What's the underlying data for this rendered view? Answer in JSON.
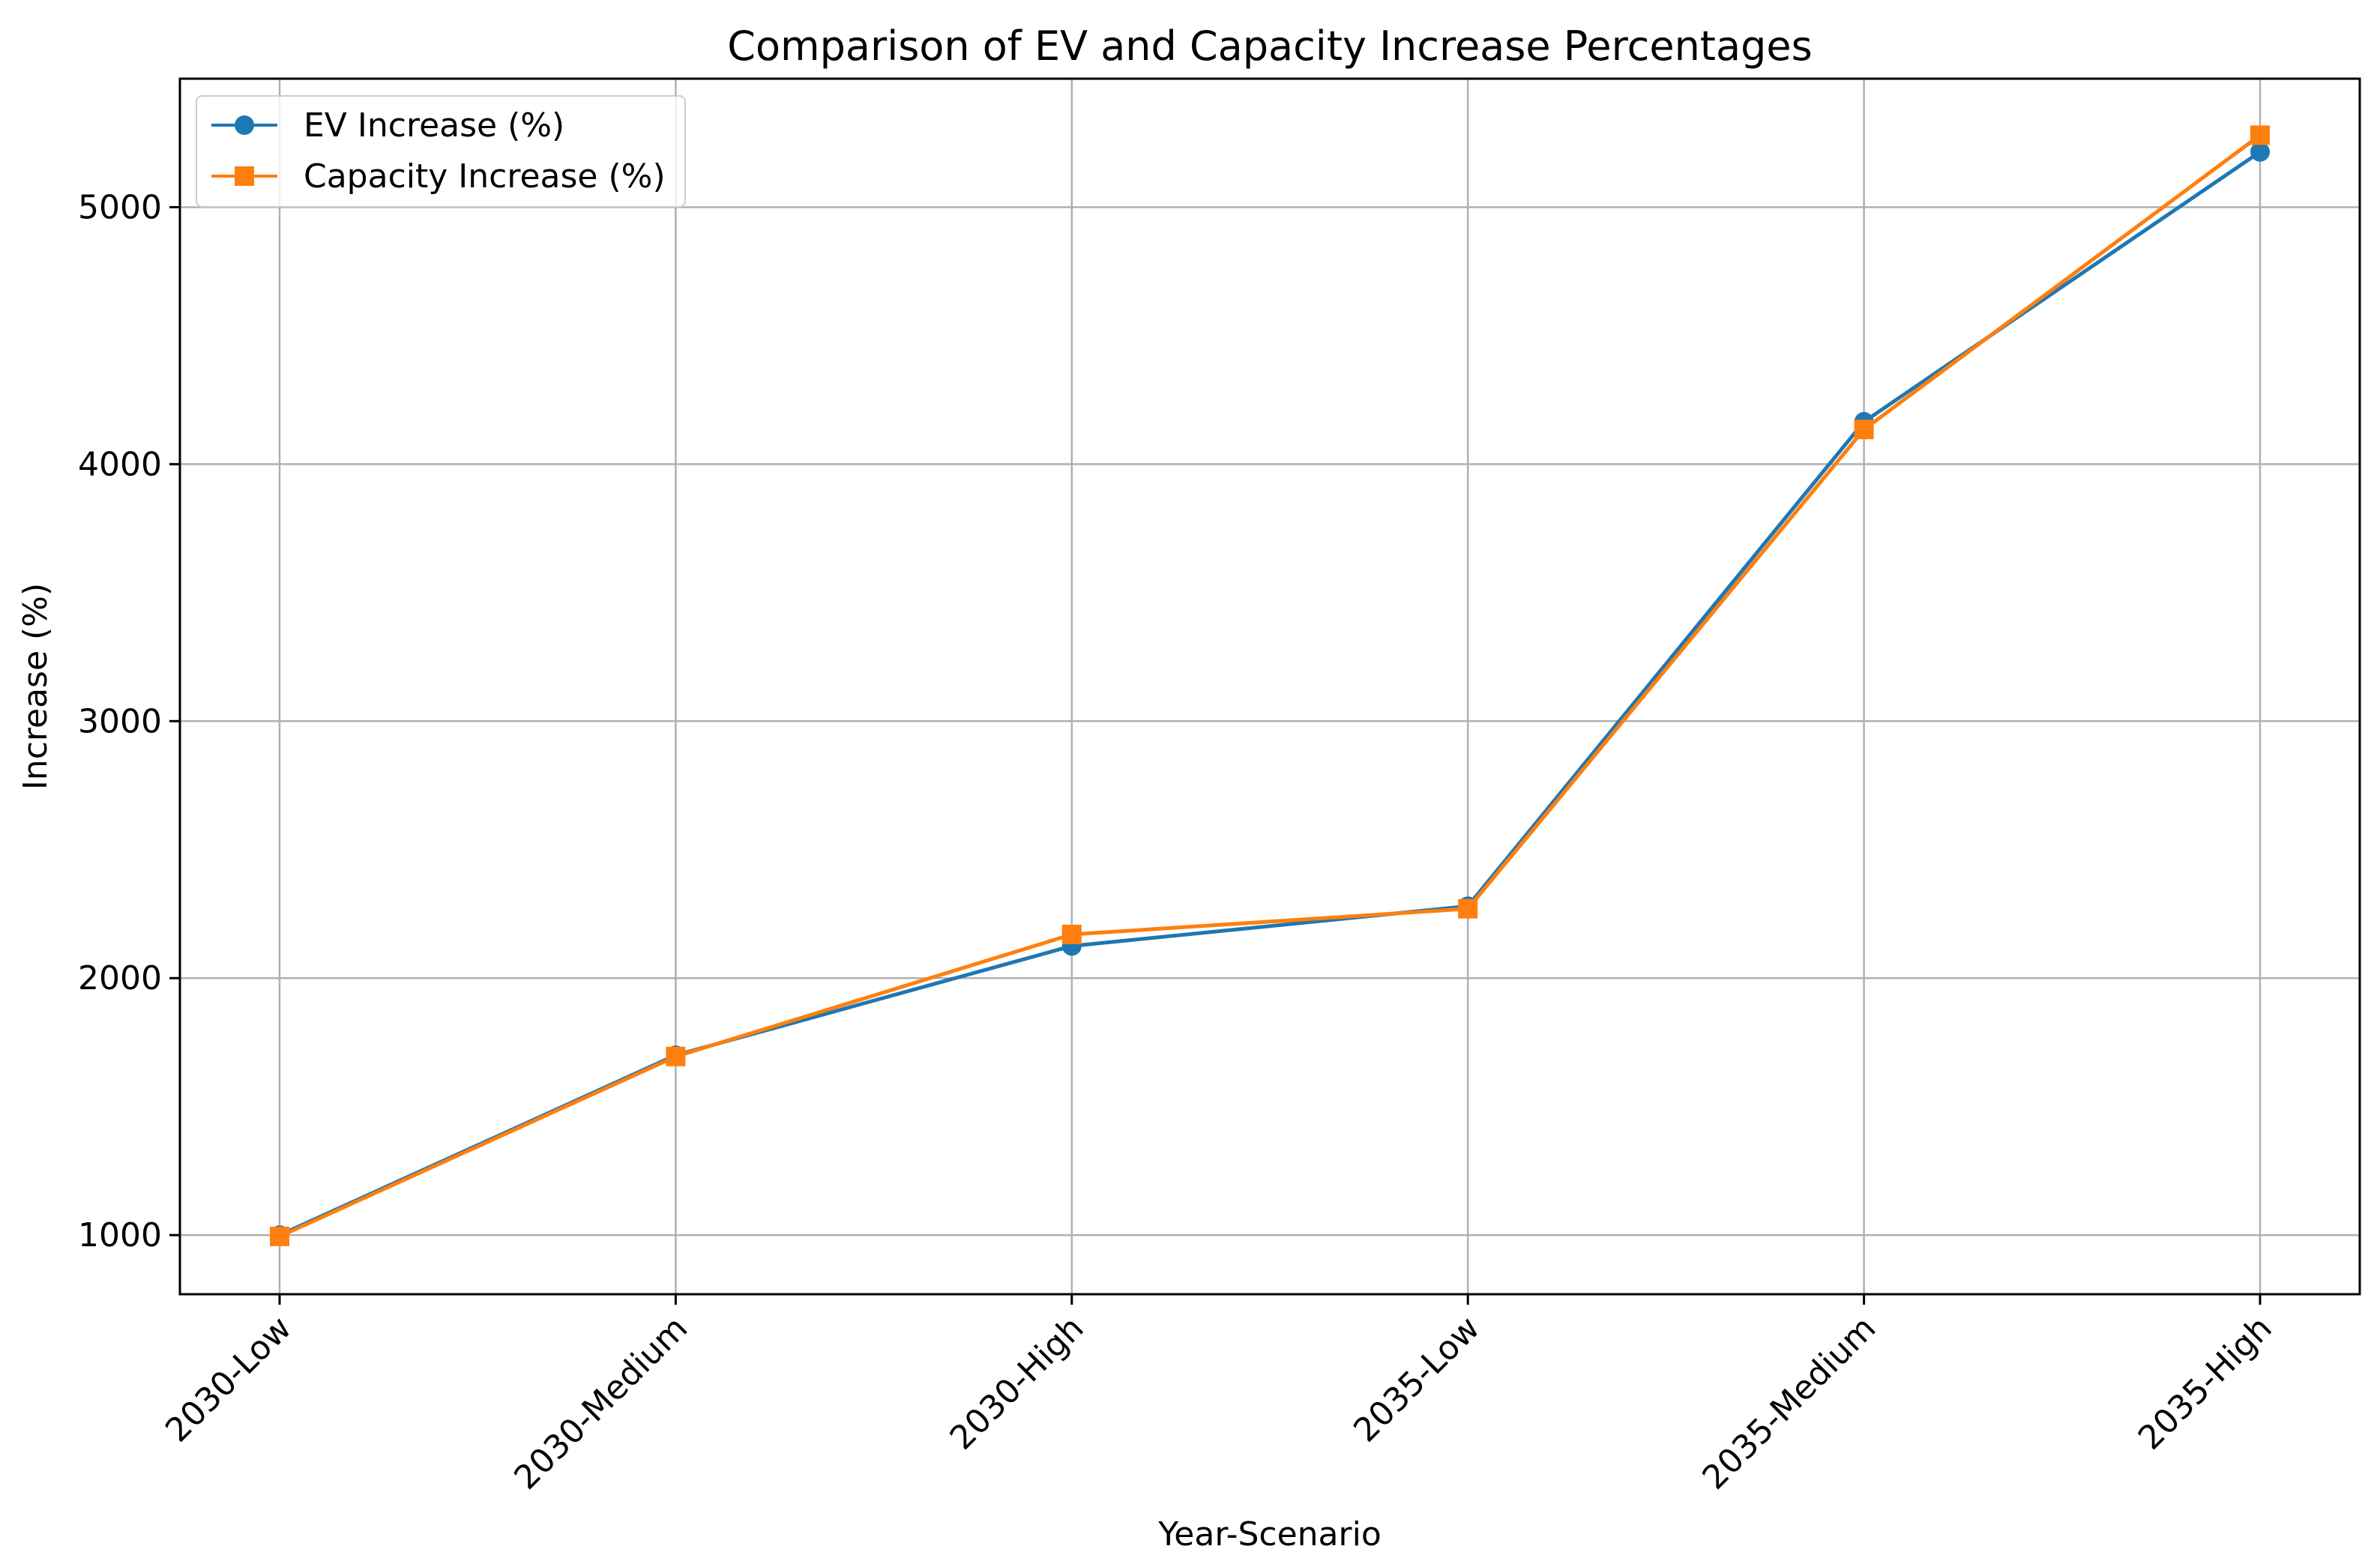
{
  "chart_data": {
    "type": "line",
    "title": "Comparison of EV and Capacity Increase Percentages",
    "xlabel": "Year-Scenario",
    "ylabel": "Increase (%)",
    "categories": [
      "2030-Low",
      "2030-Medium",
      "2030-High",
      "2035-Low",
      "2035-Medium",
      "2035-High"
    ],
    "ylim": [
      770,
      5500
    ],
    "yticks": [
      1000,
      2000,
      3000,
      4000,
      5000
    ],
    "grid": true,
    "legend_position": "upper-left",
    "series": [
      {
        "name": "EV Increase (%)",
        "values": [
          1000,
          1700,
          2125,
          2280,
          4165,
          5215
        ],
        "color": "#1f77b4",
        "marker": "circle"
      },
      {
        "name": "Capacity Increase (%)",
        "values": [
          995,
          1695,
          2170,
          2270,
          4135,
          5280
        ],
        "color": "#ff7f0e",
        "marker": "square"
      }
    ]
  }
}
